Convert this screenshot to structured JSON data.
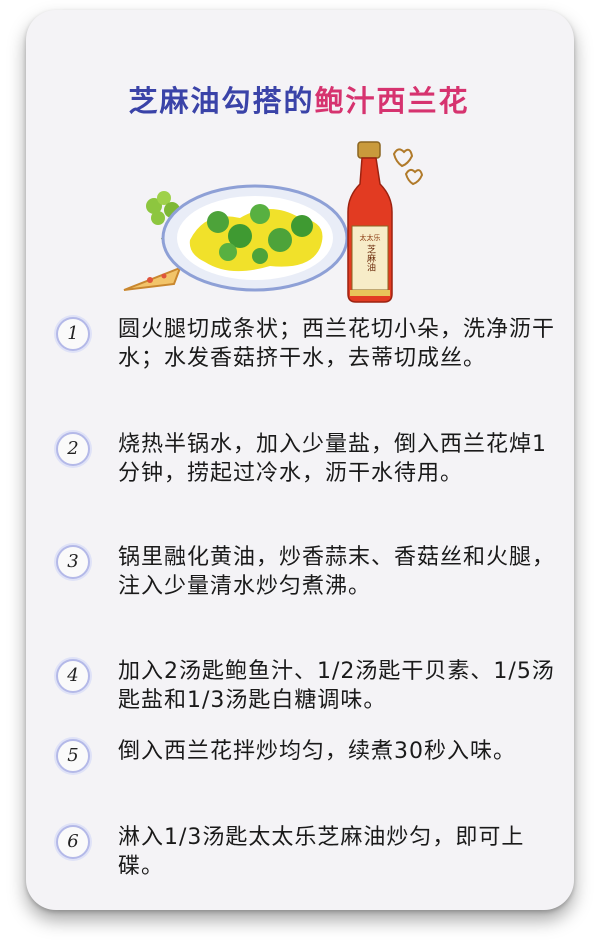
{
  "title": {
    "part1": "芝麻油勾搭的",
    "part2": "鲍汁西兰花"
  },
  "bottle_label": {
    "brand": "太太乐",
    "name": "芝麻油"
  },
  "steps": [
    {
      "number": "1",
      "text": "圆火腿切成条状；西兰花切小朵，洗净沥干水；水发香菇挤干水，去蒂切成丝。"
    },
    {
      "number": "2",
      "text": "烧热半锅水，加入少量盐，倒入西兰花焯1分钟，捞起过冷水，沥干水待用。"
    },
    {
      "number": "3",
      "text": "锅里融化黄油，炒香蒜末、香菇丝和火腿，注入少量清水炒匀煮沸。"
    },
    {
      "number": "4",
      "text": "加入2汤匙鲍鱼汁、1/2汤匙干贝素、1/5汤匙盐和1/3汤匙白糖调味。"
    },
    {
      "number": "5",
      "text": "倒入西兰花拌炒均匀，续煮30秒入味。"
    },
    {
      "number": "6",
      "text": "淋入1/3汤匙太太乐芝麻油炒匀，即可上碟。"
    }
  ],
  "colors": {
    "title_blue": "#3a43a8",
    "title_pink": "#d6336f",
    "circle_border": "#b4b9e8"
  }
}
